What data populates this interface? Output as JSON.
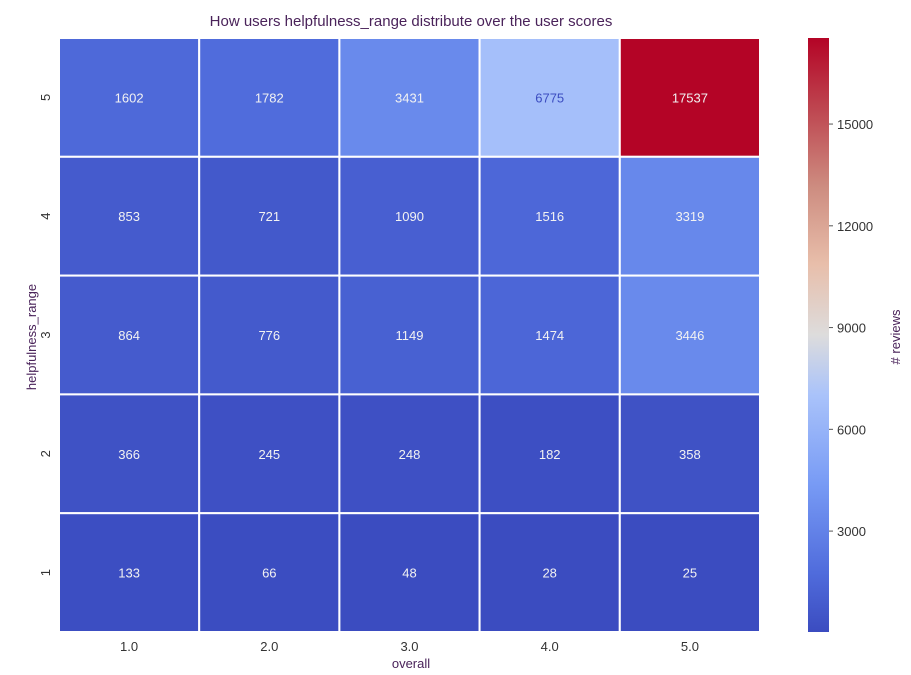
{
  "chart_data": {
    "type": "heatmap",
    "title": "How users helpfulness_range distribute over the user scores",
    "xlabel": "overall",
    "ylabel": "helpfulness_range",
    "x_categories": [
      "1.0",
      "2.0",
      "3.0",
      "4.0",
      "5.0"
    ],
    "y_categories": [
      "5",
      "4",
      "3",
      "2",
      "1"
    ],
    "values": [
      [
        1602,
        1782,
        3431,
        6775,
        17537
      ],
      [
        853,
        721,
        1090,
        1516,
        3319
      ],
      [
        864,
        776,
        1149,
        1474,
        3446
      ],
      [
        366,
        245,
        248,
        182,
        358
      ],
      [
        133,
        66,
        48,
        28,
        25
      ]
    ],
    "colorbar": {
      "label": "# reviews",
      "ticks": [
        "3000",
        "6000",
        "9000",
        "12000",
        "15000"
      ],
      "tick_values": [
        3000,
        6000,
        9000,
        12000,
        15000
      ],
      "vmin": 25,
      "vmax": 17537,
      "colormap": "coolwarm"
    },
    "colors": {
      "low": "#3b4cc0",
      "mid": "#dddddd",
      "high": "#b40426"
    }
  }
}
